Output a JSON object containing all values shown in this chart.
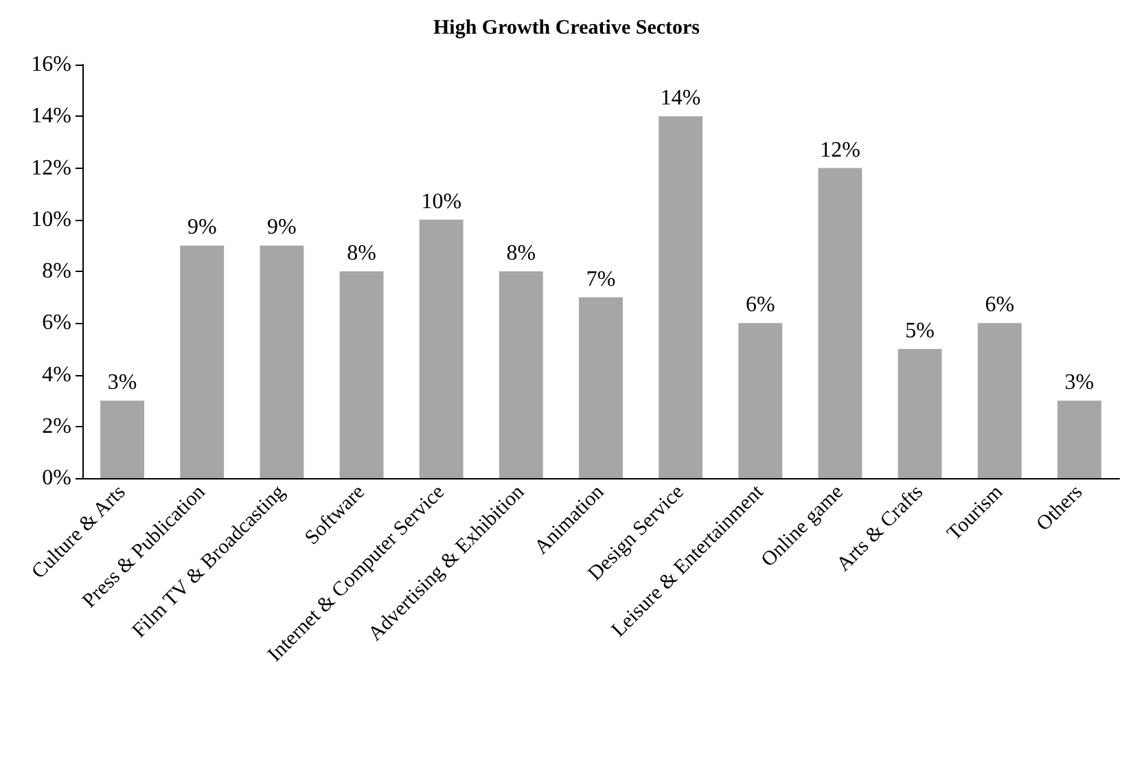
{
  "chart_data": {
    "type": "bar",
    "title": "High Growth Creative Sectors",
    "categories": [
      "Culture & Arts",
      "Press & Publication",
      "Film TV & Broadcasting",
      "Software",
      "Internet & Computer Service",
      "Advertising & Exhibition",
      "Animation",
      "Design Service",
      "Leisure & Entertainment",
      "Online game",
      "Arts & Crafts",
      "Tourism",
      "Others"
    ],
    "values": [
      3,
      9,
      9,
      8,
      10,
      8,
      7,
      14,
      6,
      12,
      5,
      6,
      3
    ],
    "value_labels": [
      "3%",
      "9%",
      "9%",
      "8%",
      "10%",
      "8%",
      "7%",
      "14%",
      "6%",
      "12%",
      "5%",
      "6%",
      "3%"
    ],
    "color": "#a6a6a6",
    "ylim": [
      0,
      16
    ],
    "yticks": [
      {
        "value": 0,
        "label": "0%"
      },
      {
        "value": 2,
        "label": "2%"
      },
      {
        "value": 4,
        "label": "4%"
      },
      {
        "value": 6,
        "label": "6%"
      },
      {
        "value": 8,
        "label": "8%"
      },
      {
        "value": 10,
        "label": "10%"
      },
      {
        "value": 12,
        "label": "12%"
      },
      {
        "value": 14,
        "label": "14%"
      },
      {
        "value": 16,
        "label": "16%"
      }
    ],
    "grid": false
  }
}
